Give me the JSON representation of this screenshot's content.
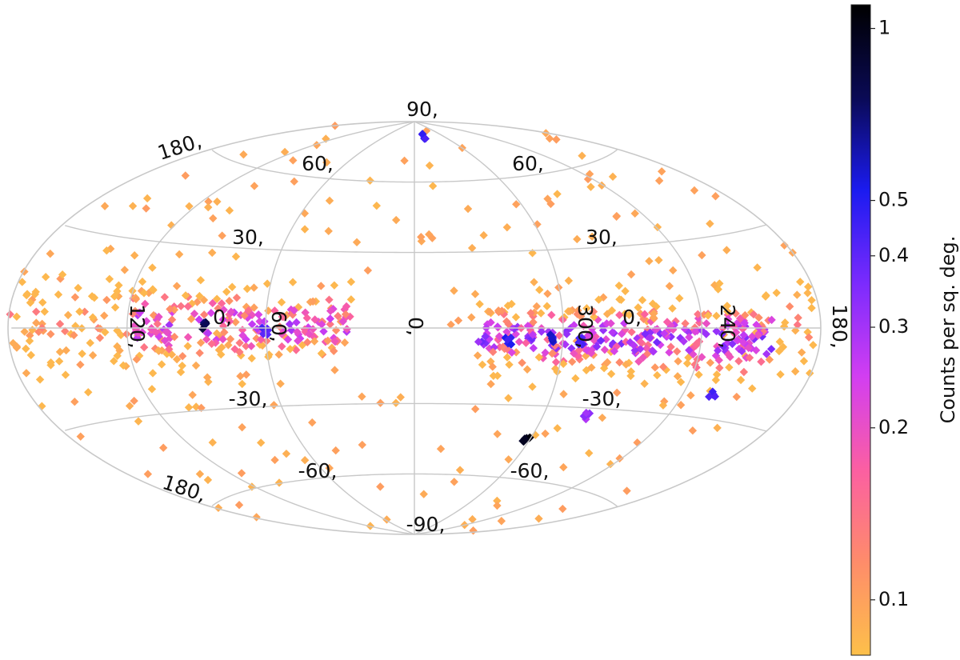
{
  "chart_data": {
    "type": "heatmap",
    "projection": "aitoff/hammer all-sky",
    "title": "",
    "grid": true,
    "colormap": [
      "#fdc04a",
      "#fe8c6a",
      "#fb5fa2",
      "#d23ef1",
      "#7b2bfd",
      "#1b1bf0",
      "#0a0a55",
      "#000000"
    ],
    "meridian_labels": [
      "180,",
      "120,",
      "60,",
      "0,",
      "300,",
      "240,",
      "180,"
    ],
    "parallel_labels_left": [
      "90,",
      "60,",
      "30,",
      "0,",
      "-30,",
      "-60,",
      "-90,"
    ],
    "parallel_labels_right": [
      "60,",
      "30,",
      "0,",
      "-30,",
      "-60,"
    ],
    "colorbar": {
      "label": "Counts per sq. deg.",
      "scale": "log",
      "range": [
        0.08,
        1.1
      ],
      "ticks": [
        {
          "value": 1,
          "label": "1"
        },
        {
          "value": 0.5,
          "label": "0.5"
        },
        {
          "value": 0.4,
          "label": "0.4"
        },
        {
          "value": 0.3,
          "label": "0.3"
        },
        {
          "value": 0.2,
          "label": "0.2"
        },
        {
          "value": 0.1,
          "label": "0.1"
        }
      ]
    },
    "bands": [
      {
        "lon_min": 205,
        "lon_max": 335,
        "lat_center": -4,
        "lat_sigma": 7,
        "count": 360,
        "peak": 0.32
      },
      {
        "lon_min": 25,
        "lon_max": 120,
        "lat_center": 1,
        "lat_sigma": 8,
        "count": 220,
        "peak": 0.26
      },
      {
        "lon_min": 120,
        "lon_max": 205,
        "lat_center": 2,
        "lat_sigma": 10,
        "count": 90,
        "peak": 0.12
      }
    ],
    "hotspots": [
      {
        "lon": 85,
        "lat": 1,
        "value": 0.85
      },
      {
        "lon": 60,
        "lat": -1,
        "value": 0.45
      },
      {
        "lon": 322,
        "lat": -5,
        "value": 0.55
      },
      {
        "lon": 305,
        "lat": -4,
        "value": 0.6
      },
      {
        "lon": 292,
        "lat": -5,
        "value": 0.5
      },
      {
        "lon": 280,
        "lat": -33,
        "value": 0.35
      },
      {
        "lon": 302,
        "lat": -44,
        "value": 1.05
      },
      {
        "lon": 340,
        "lat": 82,
        "value": 0.5
      },
      {
        "lon": 225,
        "lat": -22,
        "value": 0.5
      }
    ]
  }
}
